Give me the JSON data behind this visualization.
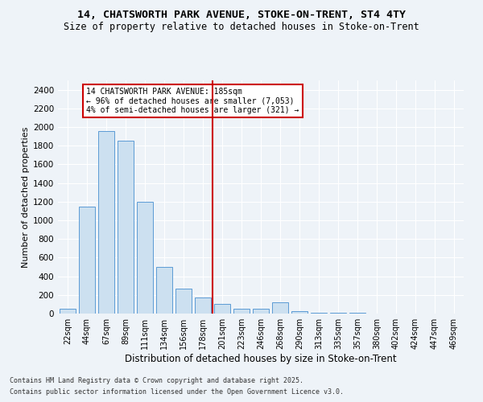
{
  "title_line1": "14, CHATSWORTH PARK AVENUE, STOKE-ON-TRENT, ST4 4TY",
  "title_line2": "Size of property relative to detached houses in Stoke-on-Trent",
  "xlabel": "Distribution of detached houses by size in Stoke-on-Trent",
  "ylabel": "Number of detached properties",
  "categories": [
    "22sqm",
    "44sqm",
    "67sqm",
    "89sqm",
    "111sqm",
    "134sqm",
    "156sqm",
    "178sqm",
    "201sqm",
    "223sqm",
    "246sqm",
    "268sqm",
    "290sqm",
    "313sqm",
    "335sqm",
    "357sqm",
    "380sqm",
    "402sqm",
    "424sqm",
    "447sqm",
    "469sqm"
  ],
  "values": [
    50,
    1150,
    1960,
    1850,
    1200,
    500,
    265,
    175,
    100,
    55,
    50,
    120,
    25,
    12,
    5,
    5,
    3,
    2,
    2,
    2,
    2
  ],
  "bar_color": "#cce0f0",
  "bar_edge_color": "#5b9bd5",
  "vline_color": "#cc0000",
  "annotation_text": "14 CHATSWORTH PARK AVENUE: 185sqm\n← 96% of detached houses are smaller (7,053)\n4% of semi-detached houses are larger (321) →",
  "annotation_box_color": "#cc0000",
  "ylim": [
    0,
    2500
  ],
  "yticks": [
    0,
    200,
    400,
    600,
    800,
    1000,
    1200,
    1400,
    1600,
    1800,
    2000,
    2200,
    2400
  ],
  "bg_color": "#eef3f8",
  "grid_color": "#ffffff",
  "footer_line1": "Contains HM Land Registry data © Crown copyright and database right 2025.",
  "footer_line2": "Contains public sector information licensed under the Open Government Licence v3.0."
}
